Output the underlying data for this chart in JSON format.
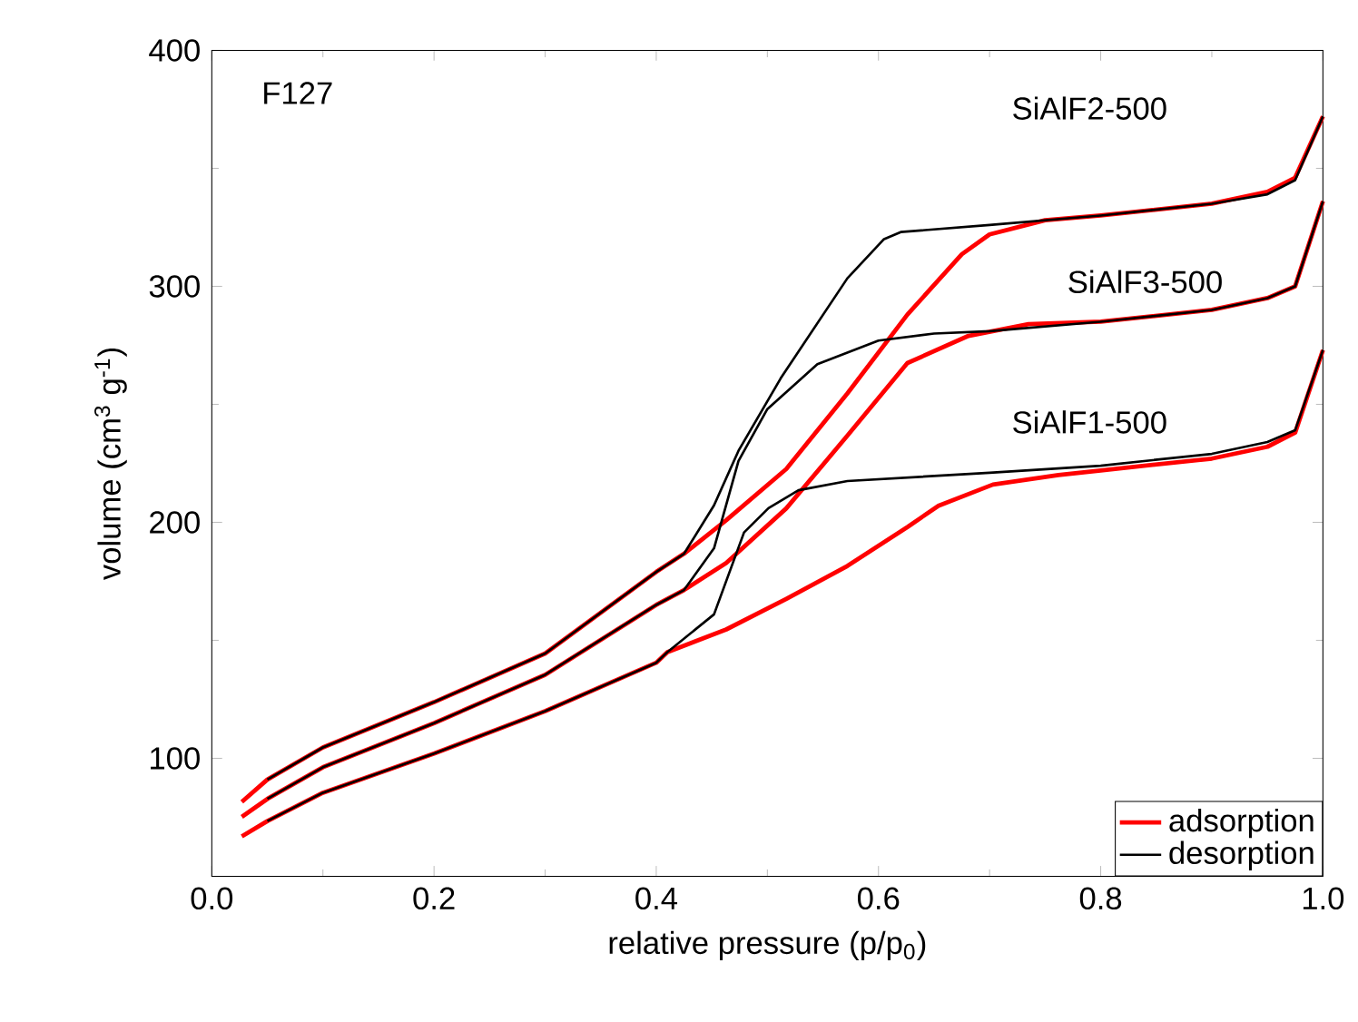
{
  "chart_data": {
    "type": "line",
    "xlabel": "relative pressure (p/p$_{0}$)",
    "ylabel": "volume (cm$^{3}$ g$^{-1}$)",
    "xlim": [
      0,
      1
    ],
    "ylim": [
      50,
      400
    ],
    "xticks": [
      {
        "value": 0,
        "label": "0.0"
      },
      0.2,
      0.4,
      0.6,
      0.8,
      {
        "value": 1,
        "label": "1.0"
      }
    ],
    "yticks": [
      100,
      200,
      300,
      400
    ],
    "legend": "bottom right",
    "grid": false,
    "marker": "none",
    "line_style": "solid",
    "annotations": [
      "F127",
      "SiAlF2-500",
      "SiAlF3-500",
      "SiAlF1-500"
    ],
    "series": [
      {
        "name": "adsorption",
        "color": "#ff0000",
        "x": [
          0.027,
          0.05,
          0.1,
          0.2,
          0.3,
          0.4,
          0.425,
          0.463,
          0.517,
          0.572,
          0.626,
          0.675,
          0.7,
          0.75,
          0.8,
          0.9,
          0.95,
          0.975,
          1.0
        ],
        "values": [
          81.5,
          91,
          104.6,
          123.8,
          144.4,
          179,
          186.7,
          200.9,
          222.6,
          254.6,
          288,
          313.6,
          322,
          328,
          330,
          335,
          340,
          346,
          372
        ]
      },
      {
        "name": "desorption",
        "color": "#000000",
        "x": [
          0.05,
          0.1,
          0.2,
          0.3,
          0.4,
          0.425,
          0.452,
          0.474,
          0.512,
          0.572,
          0.605,
          0.62,
          0.7,
          0.8,
          0.9,
          0.95,
          0.975,
          1.0
        ],
        "values": [
          91,
          104.6,
          123.8,
          144.4,
          179,
          186.7,
          207.2,
          230.3,
          261,
          303.4,
          320,
          323,
          326,
          330,
          335,
          339,
          345,
          372
        ]
      },
      {
        "color": "#ff0000",
        "x": [
          0.027,
          0.05,
          0.1,
          0.2,
          0.3,
          0.4,
          0.425,
          0.463,
          0.517,
          0.572,
          0.626,
          0.681,
          0.735,
          0.8,
          0.9,
          0.95,
          0.975,
          1.0
        ],
        "values": [
          75.2,
          82.8,
          96.2,
          114.9,
          135.4,
          165,
          171.3,
          182.8,
          205.9,
          236.7,
          267.5,
          279,
          284,
          285,
          290,
          295,
          300,
          336
        ]
      },
      {
        "color": "#000000",
        "x": [
          0.05,
          0.1,
          0.2,
          0.3,
          0.4,
          0.425,
          0.452,
          0.474,
          0.5,
          0.545,
          0.6,
          0.65,
          0.7,
          0.8,
          0.9,
          0.95,
          0.975,
          1.0
        ],
        "values": [
          82.8,
          96.2,
          114.9,
          135.4,
          165,
          171.3,
          189,
          226,
          248,
          267,
          277,
          280,
          281,
          285,
          290,
          295,
          300,
          336
        ]
      },
      {
        "color": "#ff0000",
        "x": [
          0.027,
          0.05,
          0.1,
          0.2,
          0.3,
          0.4,
          0.41,
          0.463,
          0.517,
          0.572,
          0.626,
          0.654,
          0.703,
          0.762,
          0.8,
          0.9,
          0.95,
          0.975,
          1.0
        ],
        "values": [
          66.9,
          73.4,
          85.4,
          102,
          120,
          140.5,
          145,
          154.6,
          167.5,
          181.5,
          198,
          207,
          216,
          220,
          222,
          227,
          232,
          238,
          273
        ]
      },
      {
        "color": "#000000",
        "x": [
          0.05,
          0.1,
          0.2,
          0.3,
          0.4,
          0.41,
          0.452,
          0.479,
          0.501,
          0.528,
          0.572,
          0.7,
          0.8,
          0.9,
          0.95,
          0.975,
          1.0
        ],
        "values": [
          73.4,
          85.4,
          102,
          120,
          140.5,
          145,
          161,
          195.7,
          206,
          213.6,
          217.5,
          221,
          224,
          229,
          234,
          239,
          273
        ]
      }
    ]
  }
}
